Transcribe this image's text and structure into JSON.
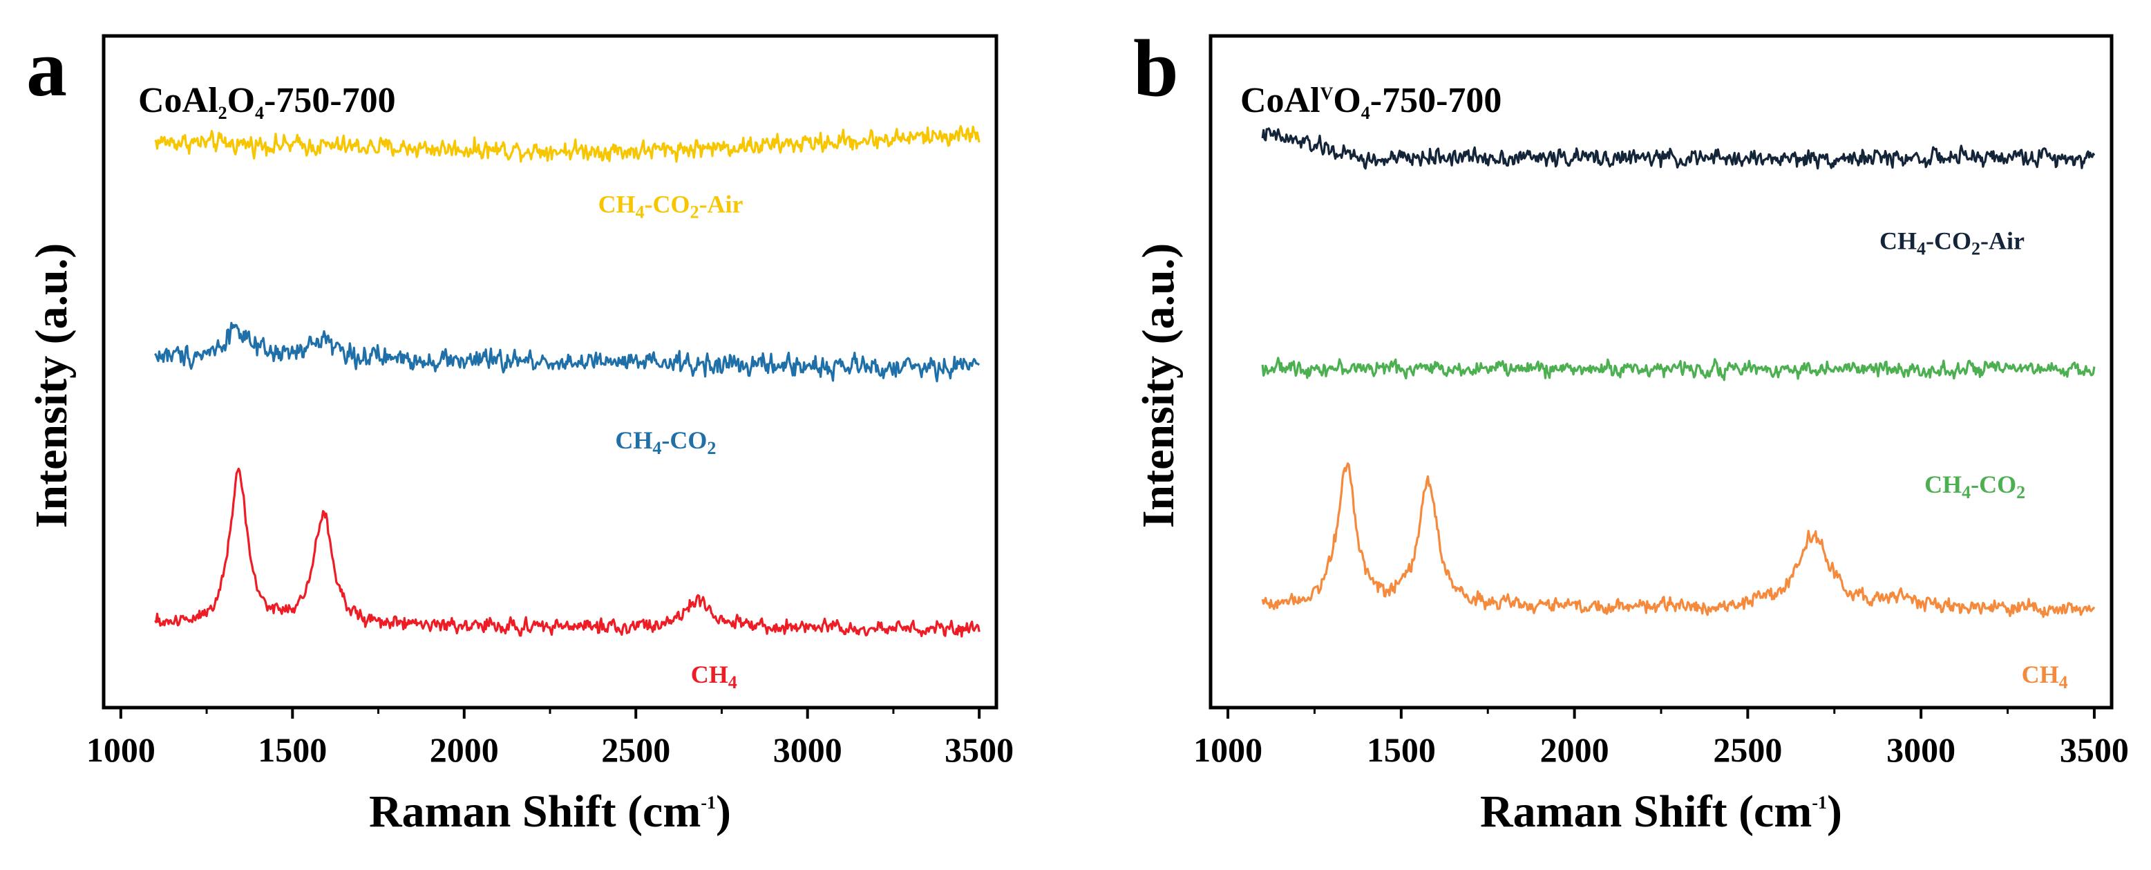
{
  "chart_data": [
    {
      "type": "line",
      "panel_label": "a",
      "title": {
        "base": "CoAl",
        "sub1": "2",
        "mid": "O",
        "sub2": "4",
        "tail": "-750-700"
      },
      "xlabel": {
        "main": "Raman Shift (cm",
        "sup": "-1",
        "close": ")"
      },
      "ylabel": "Intensity (a.u.)",
      "xlim": [
        950,
        3550
      ],
      "ylim": [
        -0.15,
        3.35
      ],
      "xticks": [
        1000,
        1500,
        2000,
        2500,
        3000,
        3500
      ],
      "yticks_shown": false,
      "grid": false,
      "legend": "inline labels",
      "series": [
        {
          "name": "CH4-CO2-Air",
          "label_parts": [
            [
              "CH",
              "n"
            ],
            [
              "4",
              "s"
            ],
            [
              "-CO",
              "n"
            ],
            [
              "2",
              "s"
            ],
            [
              "-Air",
              "n"
            ]
          ],
          "color": "#F7C600",
          "offset": 2.8,
          "baseline": [
            [
              1100,
              0.0
            ],
            [
              1500,
              -0.02
            ],
            [
              2000,
              -0.04
            ],
            [
              2500,
              -0.05
            ],
            [
              3000,
              -0.01
            ],
            [
              3500,
              0.04
            ]
          ],
          "peaks": [],
          "noise": 0.045,
          "label_x": 2390,
          "label_y": 2.43
        },
        {
          "name": "CH4-CO2",
          "label_parts": [
            [
              "CH",
              "n"
            ],
            [
              "4",
              "s"
            ],
            [
              "-CO",
              "n"
            ],
            [
              "2",
              "s"
            ]
          ],
          "color": "#1F6FA8",
          "offset": 1.68,
          "baseline": [
            [
              1100,
              0.0
            ],
            [
              2000,
              -0.02
            ],
            [
              2600,
              -0.04
            ],
            [
              3400,
              -0.06
            ],
            [
              3500,
              -0.03
            ]
          ],
          "peaks": [
            {
              "center": 1335,
              "height": 0.16,
              "width": 35
            },
            {
              "center": 1590,
              "height": 0.11,
              "width": 40
            }
          ],
          "noise": 0.05,
          "label_x": 2440,
          "label_y": 1.2
        },
        {
          "name": "CH4",
          "label_parts": [
            [
              "CH",
              "n"
            ],
            [
              "4",
              "s"
            ]
          ],
          "color": "#EE1C25",
          "offset": 0.28,
          "baseline": [
            [
              1100,
              0.0
            ],
            [
              3500,
              -0.02
            ]
          ],
          "peaks": [
            {
              "center": 1343,
              "height": 0.8,
              "width": 30
            },
            {
              "center": 1590,
              "height": 0.58,
              "width": 32
            },
            {
              "center": 2680,
              "height": 0.14,
              "width": 40
            }
          ],
          "noise": 0.035,
          "label_x": 2660,
          "label_y": -0.02
        }
      ]
    },
    {
      "type": "line",
      "panel_label": "b",
      "title": {
        "base": "CoAl",
        "sup": "V",
        "mid": "O",
        "sub2": "4",
        "tail": "-750-700"
      },
      "xlabel": {
        "main": "Raman Shift (cm",
        "sup": "-1",
        "close": ")"
      },
      "ylabel": "Intensity (a.u.)",
      "xlim": [
        950,
        3550
      ],
      "ylim": [
        -0.15,
        3.35
      ],
      "xticks": [
        1000,
        1500,
        2000,
        2500,
        3000,
        3500
      ],
      "yticks_shown": false,
      "grid": false,
      "legend": "inline labels",
      "series": [
        {
          "name": "CH4-CO2-Air",
          "label_parts": [
            [
              "CH",
              "n"
            ],
            [
              "4",
              "s"
            ],
            [
              "-CO",
              "n"
            ],
            [
              "2",
              "s"
            ],
            [
              "-Air",
              "n"
            ]
          ],
          "color": "#14253A",
          "offset": 2.72,
          "baseline": [
            [
              1100,
              0.12
            ],
            [
              1250,
              0.06
            ],
            [
              1400,
              -0.02
            ],
            [
              1600,
              0.0
            ],
            [
              2500,
              -0.01
            ],
            [
              3500,
              0.0
            ]
          ],
          "peaks": [],
          "noise": 0.04,
          "label_x": 2880,
          "label_y": 2.24
        },
        {
          "name": "CH4-CO2",
          "label_parts": [
            [
              "CH",
              "n"
            ],
            [
              "4",
              "s"
            ],
            [
              "-CO",
              "n"
            ],
            [
              "2",
              "s"
            ]
          ],
          "color": "#4CAF50",
          "offset": 1.62,
          "baseline": [
            [
              1100,
              0.0
            ],
            [
              3500,
              -0.01
            ]
          ],
          "peaks": [],
          "noise": 0.035,
          "label_x": 3010,
          "label_y": 0.97
        },
        {
          "name": "CH4",
          "label_parts": [
            [
              "CH",
              "n"
            ],
            [
              "4",
              "s"
            ]
          ],
          "color": "#F58A3C",
          "offset": 0.38,
          "baseline": [
            [
              1100,
              0.0
            ],
            [
              3500,
              -0.02
            ]
          ],
          "peaks": [
            {
              "center": 1343,
              "height": 0.73,
              "width": 32
            },
            {
              "center": 1578,
              "height": 0.65,
              "width": 32
            },
            {
              "center": 2690,
              "height": 0.38,
              "width": 55
            },
            {
              "center": 2940,
              "height": 0.05,
              "width": 60
            }
          ],
          "noise": 0.035,
          "label_x": 3290,
          "label_y": -0.02
        }
      ]
    }
  ]
}
